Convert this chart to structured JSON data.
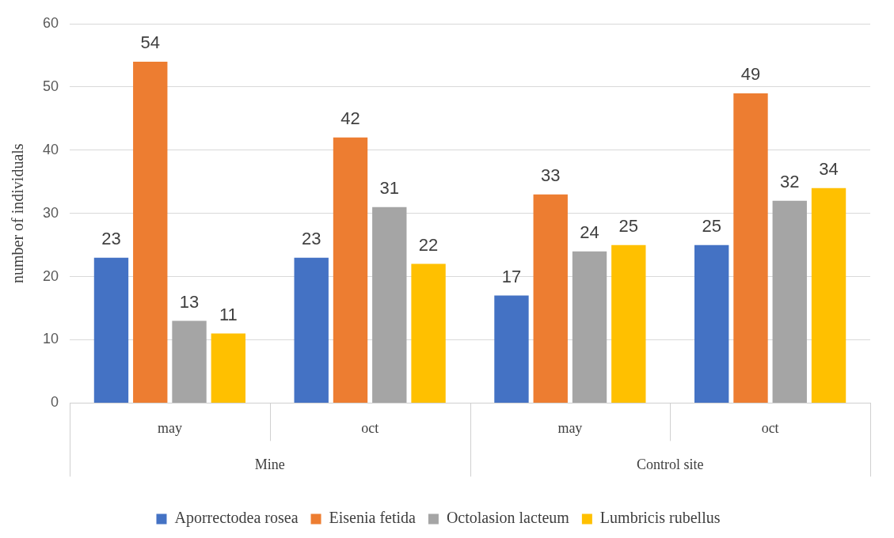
{
  "chart_data": {
    "type": "bar",
    "ylabel": "number of individuals",
    "categories": [
      "may",
      "oct",
      "may",
      "oct"
    ],
    "annotations": [
      "Mine",
      "Control site"
    ],
    "series": [
      {
        "name": "Aporrectodea rosea",
        "color": "#4472c4",
        "values": [
          23,
          23,
          17,
          25
        ]
      },
      {
        "name": "Eisenia fetida",
        "color": "#ed7d31",
        "values": [
          54,
          42,
          33,
          49
        ]
      },
      {
        "name": "Octolasion lacteum",
        "color": "#a5a5a5",
        "values": [
          13,
          31,
          24,
          32
        ]
      },
      {
        "name": "Lumbricis rubellus",
        "color": "#ffc000",
        "values": [
          11,
          22,
          25,
          34
        ]
      }
    ],
    "ylim": [
      0,
      60
    ],
    "yticks": [
      0,
      10,
      20,
      30,
      40,
      50,
      60
    ],
    "grid": "y",
    "legend": "bottom",
    "data_labels": true
  }
}
